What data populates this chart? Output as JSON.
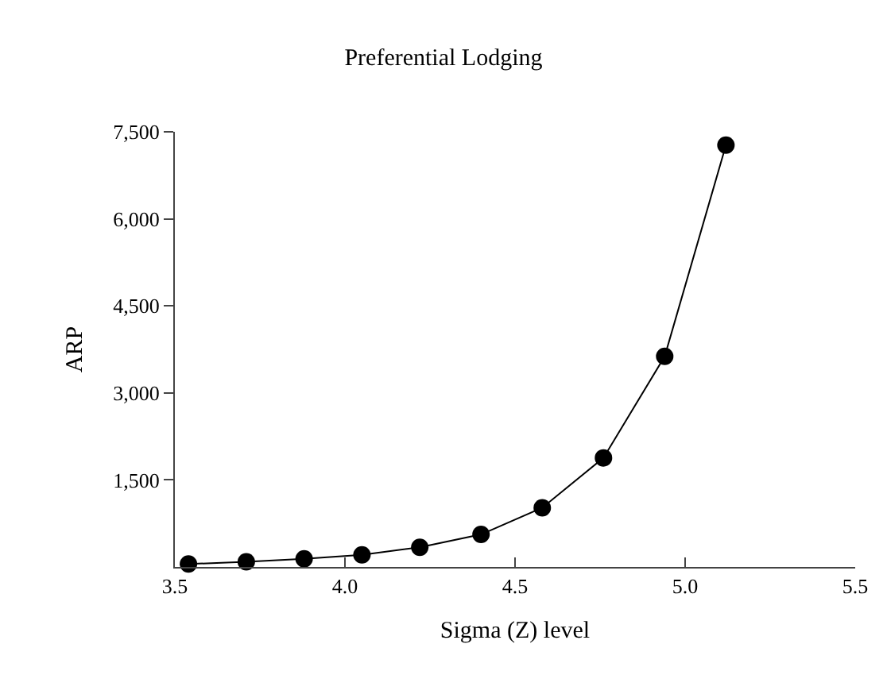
{
  "chart_data": {
    "type": "line",
    "title": "Preferential Lodging",
    "xlabel": "Sigma (Z) level",
    "ylabel": "ARP",
    "x": [
      3.54,
      3.71,
      3.88,
      4.05,
      4.22,
      4.4,
      4.58,
      4.76,
      4.94,
      5.12
    ],
    "series": [
      {
        "color": "#000000",
        "values": [
          50,
          90,
          140,
          210,
          340,
          560,
          1020,
          1880,
          3630,
          7270
        ]
      }
    ],
    "xlim": [
      3.5,
      5.5
    ],
    "xticks": [
      3.5,
      {
        "value": 4,
        "label": "4.0"
      },
      4.5,
      {
        "value": 5,
        "label": "5.0"
      },
      5.5
    ],
    "ylim": [
      0,
      7500
    ],
    "yticks": [
      {
        "value": 1500,
        "label": "1,500"
      },
      {
        "value": 3000,
        "label": "3,000"
      },
      {
        "value": 4500,
        "label": "4,500"
      },
      {
        "value": 6000,
        "label": "6,000"
      },
      {
        "value": 7500,
        "label": "7,500"
      }
    ],
    "legend": false,
    "marker": "circle",
    "line_style": "solid"
  }
}
